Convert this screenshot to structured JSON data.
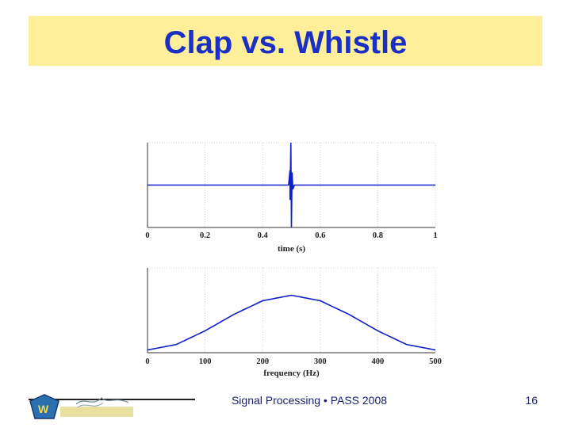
{
  "slide": {
    "title": "Clap vs. Whistle",
    "footer": "Signal Processing • PASS 2008",
    "page_number": "16",
    "title_color": "#1a2fc4",
    "title_band_color": "#ffef9a"
  },
  "logo": {
    "name": "Wilson Infrasound Observatories logo"
  },
  "chart_data": [
    {
      "type": "line",
      "title": "",
      "xlabel": "time (s)",
      "ylabel": "",
      "xlim": [
        0,
        1
      ],
      "xticks": [
        "0",
        "0.2",
        "0.4",
        "0.6",
        "0.8",
        "1"
      ],
      "grid": true,
      "color": "#1020c8",
      "series": [
        {
          "x": [
            0,
            0.49,
            0.495,
            0.495,
            0.498,
            0.5,
            0.502,
            0.505,
            0.51,
            1
          ],
          "y": [
            0,
            0,
            0.35,
            -0.35,
            1.0,
            -1.0,
            0.3,
            -0.1,
            0,
            0
          ]
        }
      ]
    },
    {
      "type": "line",
      "title": "",
      "xlabel": "frequency (Hz)",
      "ylabel": "",
      "xlim": [
        0,
        500
      ],
      "xticks": [
        "0",
        "100",
        "200",
        "300",
        "400",
        "500"
      ],
      "grid": true,
      "color": "#1020c8",
      "series": [
        {
          "x": [
            0,
            50,
            100,
            150,
            200,
            250,
            300,
            350,
            400,
            450,
            500
          ],
          "y": [
            0.0,
            0.1,
            0.35,
            0.65,
            0.9,
            1.0,
            0.9,
            0.65,
            0.35,
            0.1,
            0.0
          ]
        }
      ]
    }
  ]
}
